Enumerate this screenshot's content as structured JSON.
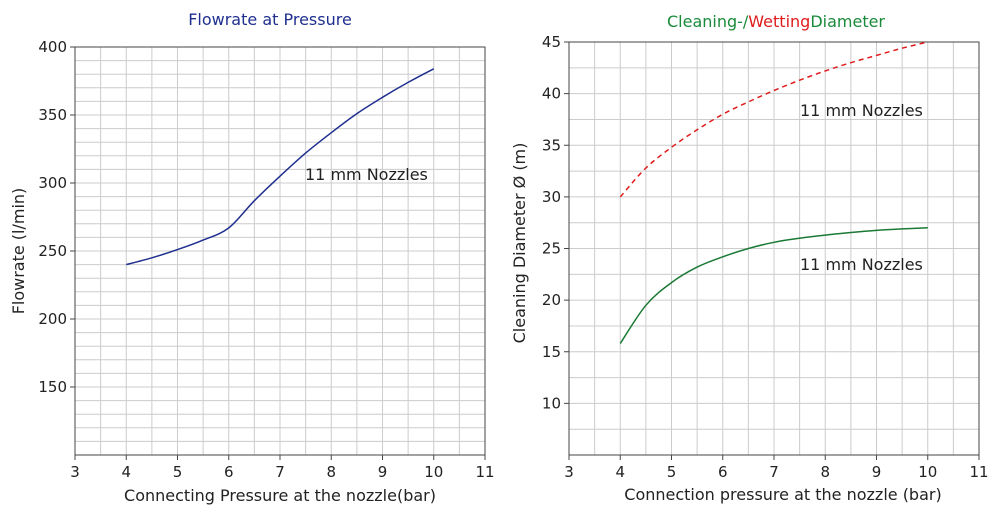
{
  "chart_data": [
    {
      "type": "line",
      "title": "Flowrate at Pressure",
      "title_color": "#1f2f8f",
      "xlabel": "Connecting Pressure at the nozzle(bar)",
      "ylabel": "Flowrate (l/min)",
      "xlim": [
        3,
        11
      ],
      "ylim": [
        100,
        400
      ],
      "xticks": [
        "3",
        "4",
        "5",
        "6",
        "7",
        "8",
        "9",
        "10",
        "11"
      ],
      "yticks": [
        "150",
        "200",
        "250",
        "300",
        "350",
        "400"
      ],
      "grid": true,
      "annotation": "11 mm Nozzles",
      "series": [
        {
          "color": "#1f2f8f",
          "dashed": false,
          "x": [
            4,
            4.5,
            5,
            5.5,
            6,
            6.5,
            7,
            7.5,
            8,
            8.5,
            9,
            9.5,
            10
          ],
          "y": [
            240,
            245,
            251,
            258,
            267,
            287,
            305,
            322,
            337,
            351,
            363,
            374,
            384
          ]
        }
      ]
    },
    {
      "type": "line",
      "title_parts": [
        {
          "text": "Cleaning-/",
          "color": "#1a8a3a"
        },
        {
          "text": "Wetting",
          "color": "#e01b1b"
        },
        {
          "text": "Diameter",
          "color": "#1a8a3a"
        }
      ],
      "xlabel": "Connection pressure at the nozzle (bar)",
      "ylabel": "Cleaning Diameter Ø (m)",
      "xlim": [
        3,
        11
      ],
      "ylim": [
        5,
        45
      ],
      "xticks": [
        "3",
        "4",
        "5",
        "6",
        "7",
        "8",
        "9",
        "10",
        "11"
      ],
      "yticks": [
        "10",
        "15",
        "20",
        "25",
        "30",
        "35",
        "40",
        "45"
      ],
      "grid": true,
      "annotations": [
        "11 mm Nozzles",
        "11 mm Nozzles"
      ],
      "series": [
        {
          "color": "#e01b1b",
          "dashed": true,
          "x": [
            4,
            4.5,
            5,
            5.5,
            6,
            6.5,
            7,
            7.5,
            8,
            8.5,
            9,
            9.5,
            10
          ],
          "y": [
            30,
            32.8,
            34.8,
            36.5,
            38,
            39.2,
            40.3,
            41.3,
            42.2,
            43,
            43.7,
            44.4,
            45
          ]
        },
        {
          "color": "#1a7a35",
          "dashed": false,
          "x": [
            4,
            4.5,
            5,
            5.5,
            6,
            6.5,
            7,
            7.5,
            8,
            8.5,
            9,
            9.5,
            10
          ],
          "y": [
            15.8,
            19.5,
            21.7,
            23.2,
            24.2,
            25,
            25.6,
            26,
            26.3,
            26.55,
            26.75,
            26.9,
            27
          ]
        }
      ]
    }
  ]
}
